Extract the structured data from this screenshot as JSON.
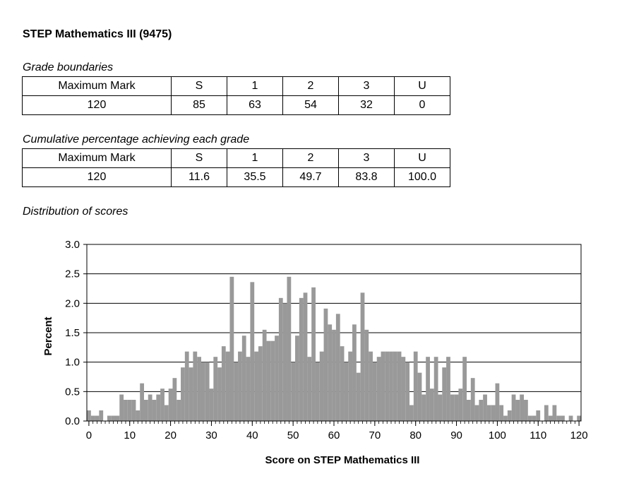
{
  "title": "STEP Mathematics III (9475)",
  "grade_boundaries": {
    "caption": "Grade boundaries",
    "headers": [
      "Maximum Mark",
      "S",
      "1",
      "2",
      "3",
      "U"
    ],
    "values": [
      "120",
      "85",
      "63",
      "54",
      "32",
      "0"
    ]
  },
  "cumulative": {
    "caption": "Cumulative percentage achieving each grade",
    "headers": [
      "Maximum Mark",
      "S",
      "1",
      "2",
      "3",
      "U"
    ],
    "values": [
      "120",
      "11.6",
      "35.5",
      "49.7",
      "83.8",
      "100.0"
    ]
  },
  "distribution_caption": "Distribution of scores",
  "chart_data": {
    "type": "bar",
    "xlabel": "Score on STEP Mathematics III",
    "ylabel": "Percent",
    "xlim": [
      0,
      120
    ],
    "ylim": [
      0,
      3.0
    ],
    "xticks": [
      "0",
      "10",
      "20",
      "30",
      "40",
      "50",
      "60",
      "70",
      "80",
      "90",
      "100",
      "110",
      "120"
    ],
    "yticks": [
      "0.0",
      "0.5",
      "1.0",
      "1.5",
      "2.0",
      "2.5",
      "3.0"
    ],
    "grid": "horizontal",
    "bar_color": "#999999",
    "x": [
      0,
      1,
      2,
      3,
      4,
      5,
      6,
      7,
      8,
      9,
      10,
      11,
      12,
      13,
      14,
      15,
      16,
      17,
      18,
      19,
      20,
      21,
      22,
      23,
      24,
      25,
      26,
      27,
      28,
      29,
      30,
      31,
      32,
      33,
      34,
      35,
      36,
      37,
      38,
      39,
      40,
      41,
      42,
      43,
      44,
      45,
      46,
      47,
      48,
      49,
      50,
      51,
      52,
      53,
      54,
      55,
      56,
      57,
      58,
      59,
      60,
      61,
      62,
      63,
      64,
      65,
      66,
      67,
      68,
      69,
      70,
      71,
      72,
      73,
      74,
      75,
      76,
      77,
      78,
      79,
      80,
      81,
      82,
      83,
      84,
      85,
      86,
      87,
      88,
      89,
      90,
      91,
      92,
      93,
      94,
      95,
      96,
      97,
      98,
      99,
      100,
      101,
      102,
      103,
      104,
      105,
      106,
      107,
      108,
      109,
      110,
      111,
      112,
      113,
      114,
      115,
      116,
      117,
      118,
      119,
      120
    ],
    "values": [
      0.18,
      0.09,
      0.09,
      0.18,
      0.0,
      0.09,
      0.09,
      0.09,
      0.45,
      0.36,
      0.36,
      0.36,
      0.18,
      0.64,
      0.36,
      0.45,
      0.36,
      0.45,
      0.55,
      0.27,
      0.55,
      0.73,
      0.36,
      0.91,
      1.18,
      0.91,
      1.18,
      1.09,
      1.0,
      1.0,
      0.55,
      1.09,
      0.91,
      1.27,
      1.18,
      2.45,
      1.0,
      1.18,
      1.45,
      1.09,
      2.36,
      1.18,
      1.27,
      1.55,
      1.36,
      1.36,
      1.45,
      2.09,
      2.0,
      2.45,
      1.0,
      1.45,
      2.09,
      2.18,
      1.09,
      2.27,
      1.0,
      1.18,
      1.91,
      1.64,
      1.55,
      1.82,
      1.27,
      1.0,
      1.18,
      1.64,
      0.82,
      2.18,
      1.55,
      1.18,
      1.0,
      1.09,
      1.18,
      1.18,
      1.18,
      1.18,
      1.18,
      1.09,
      1.0,
      0.27,
      1.18,
      0.82,
      0.45,
      1.09,
      0.55,
      1.09,
      0.45,
      0.91,
      1.09,
      0.45,
      0.45,
      0.55,
      1.09,
      0.36,
      0.73,
      0.27,
      0.36,
      0.45,
      0.27,
      0.27,
      0.64,
      0.27,
      0.09,
      0.18,
      0.45,
      0.36,
      0.45,
      0.36,
      0.09,
      0.09,
      0.18,
      0.0,
      0.27,
      0.09,
      0.27,
      0.09,
      0.09,
      0.0,
      0.09,
      0.0,
      0.09
    ]
  }
}
